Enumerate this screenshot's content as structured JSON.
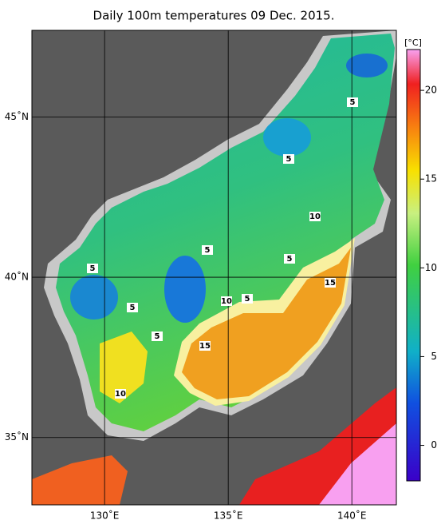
{
  "map": {
    "title": "Daily 100m temperatures 09 Dec. 2015.",
    "xlim": [
      127.06,
      141.8
    ],
    "ylim": [
      32.9,
      47.7
    ],
    "xticks": [
      {
        "value": 130,
        "label": "130˚E"
      },
      {
        "value": 135,
        "label": "135˚E"
      },
      {
        "value": 140,
        "label": "140˚E"
      }
    ],
    "yticks": [
      {
        "value": 35,
        "label": "35˚N"
      },
      {
        "value": 40,
        "label": "40˚N"
      },
      {
        "value": 45,
        "label": "45˚N"
      }
    ],
    "grid": true,
    "contour_labels": [
      5,
      5,
      10,
      5,
      5,
      5,
      15,
      10,
      5,
      5,
      5,
      15,
      10
    ],
    "colorbar": {
      "unit": "[°C]",
      "lim": [
        -2,
        22.3
      ],
      "ticks": [
        0,
        5,
        10,
        15,
        20
      ]
    }
  }
}
